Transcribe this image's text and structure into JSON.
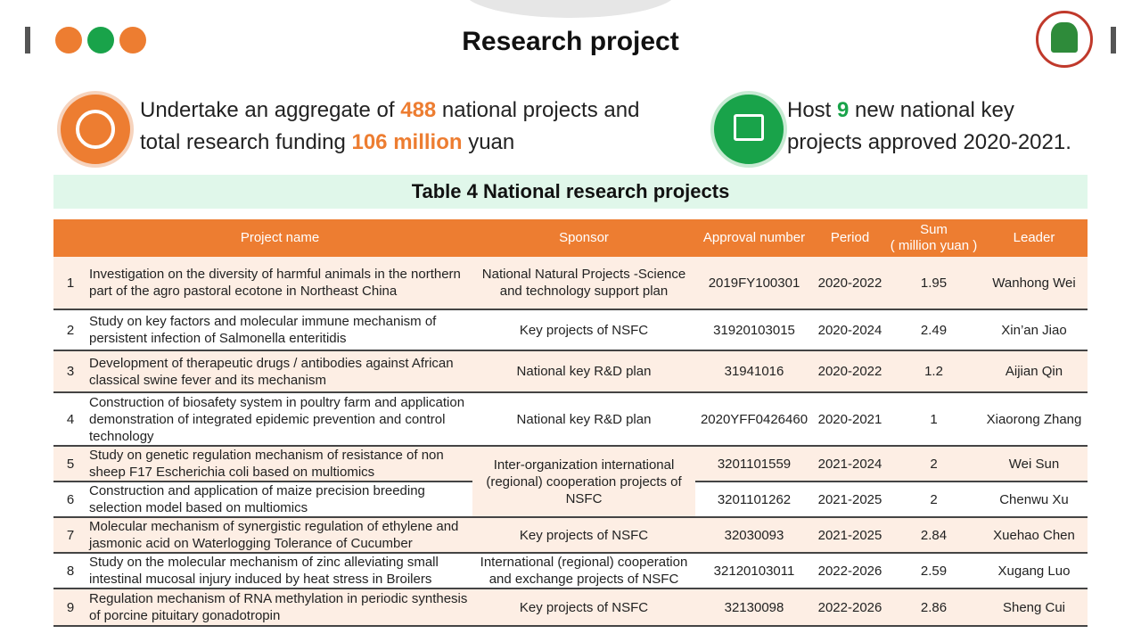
{
  "header": {
    "title": "Research project"
  },
  "stats": [
    {
      "parts": [
        "Undertake an aggregate of ",
        "488",
        " national projects and total research funding ",
        "106 million",
        " yuan"
      ]
    },
    {
      "parts": [
        "Host ",
        "9",
        " new national key projects approved 2020-2021."
      ]
    }
  ],
  "table": {
    "title": "Table 4 National research projects",
    "headers": {
      "name": "Project name",
      "sponsor": "Sponsor",
      "approval": "Approval number",
      "period": "Period",
      "sum": [
        "Sum",
        "( million yuan )"
      ],
      "leader": "Leader"
    },
    "rows": [
      {
        "no": 1,
        "name": "Investigation on the diversity of harmful animals in the northern part of the agro pastoral ecotone in Northeast China",
        "sponsor": "National Natural Projects -Science and technology support plan",
        "approval": "2019FY100301",
        "period": "2020-2022",
        "sum": 1.95,
        "leader": "Wanhong Wei"
      },
      {
        "no": 2,
        "name": "Study on key factors and molecular immune mechanism of persistent infection of Salmonella enteritidis",
        "sponsor": "Key projects of NSFC",
        "approval": "31920103015",
        "period": "2020-2024",
        "sum": 2.49,
        "leader": "Xin’an Jiao"
      },
      {
        "no": 3,
        "name": "Development of therapeutic drugs / antibodies against African classical swine fever and its mechanism",
        "sponsor": "National key R&D plan",
        "approval": "31941016",
        "period": "2020-2022",
        "sum": 1.2,
        "leader": "Aijian Qin"
      },
      {
        "no": 4,
        "name": "Construction of biosafety system in poultry farm and application demonstration of integrated epidemic prevention and control technology",
        "sponsor": "National key R&D plan",
        "approval": "2020YFF0426460",
        "period": "2020-2021",
        "sum": 1,
        "leader": "Xiaorong Zhang"
      },
      {
        "no": 5,
        "name": "Study on genetic regulation mechanism of resistance of non sheep F17 Escherichia coli based on multiomics",
        "sponsor": "Inter-organization international (regional) cooperation projects of NSFC",
        "approval": "3201101559",
        "period": "2021-2024",
        "sum": 2,
        "leader": "Wei Sun"
      },
      {
        "no": 6,
        "name": "Construction and application of maize precision breeding selection model based on multiomics",
        "approval": "3201101262",
        "period": "2021-2025",
        "sum": 2,
        "leader": "Chenwu Xu"
      },
      {
        "no": 7,
        "name": "Molecular mechanism of synergistic regulation of ethylene and jasmonic acid on Waterlogging Tolerance of Cucumber",
        "sponsor": "Key projects of NSFC",
        "approval": "32030093",
        "period": "2021-2025",
        "sum": 2.84,
        "leader": "Xuehao Chen"
      },
      {
        "no": 8,
        "name": "Study on the molecular mechanism of zinc alleviating small intestinal mucosal injury induced by heat stress in Broilers",
        "sponsor": "International (regional) cooperation and exchange projects of NSFC",
        "approval": "32120103011",
        "period": "2022-2026",
        "sum": 2.59,
        "leader": "Xugang Luo"
      },
      {
        "no": 9,
        "name": "Regulation mechanism of RNA methylation in periodic synthesis of porcine pituitary gonadotropin",
        "sponsor": "Key projects of NSFC",
        "approval": "32130098",
        "period": "2022-2026",
        "sum": 2.86,
        "leader": "Sheng Cui"
      }
    ]
  }
}
